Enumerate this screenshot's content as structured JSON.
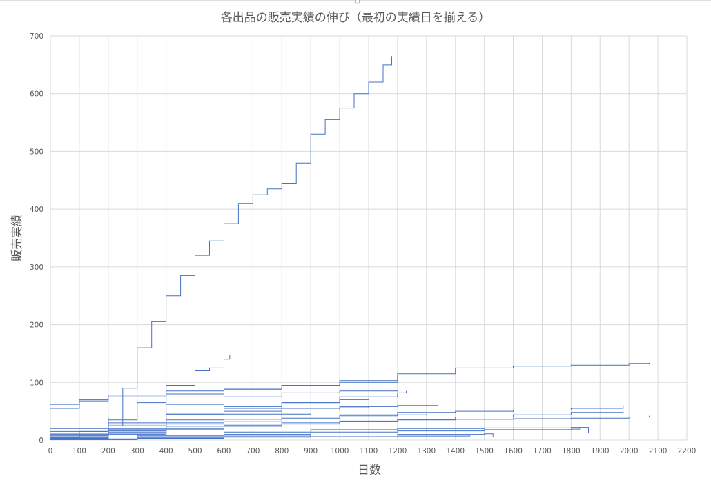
{
  "chart_data": {
    "type": "line",
    "title": "各出品の販売実績の伸び（最初の実績日を揃える）",
    "xlabel": "日数",
    "ylabel": "販売実績",
    "xlim": [
      0,
      2200
    ],
    "ylim": [
      0,
      700
    ],
    "x_ticks": [
      "0",
      "100",
      "200",
      "300",
      "400",
      "500",
      "600",
      "700",
      "800",
      "900",
      "1000",
      "1100",
      "1200",
      "1300",
      "1400",
      "1500",
      "1600",
      "1700",
      "1800",
      "1900",
      "2000",
      "2100",
      "2200"
    ],
    "y_ticks": [
      "0",
      "100",
      "200",
      "300",
      "400",
      "500",
      "600",
      "700"
    ],
    "grid": true,
    "legend": "none",
    "color": "#4472c4",
    "series": [
      {
        "x": [
          0,
          100,
          200,
          250,
          300,
          350,
          400,
          450,
          500,
          550,
          600,
          650,
          700,
          750,
          800,
          850,
          900,
          950,
          1000,
          1050,
          1100,
          1150,
          1180
        ],
        "y": [
          2,
          8,
          25,
          90,
          160,
          205,
          250,
          285,
          320,
          345,
          375,
          410,
          425,
          435,
          445,
          480,
          530,
          555,
          575,
          600,
          620,
          650,
          665
        ]
      },
      {
        "x": [
          0,
          100,
          200,
          300,
          400,
          500,
          550,
          600,
          620
        ],
        "y": [
          5,
          15,
          35,
          65,
          95,
          120,
          125,
          140,
          147
        ]
      },
      {
        "x": [
          0,
          100,
          200,
          400,
          600,
          800,
          1000,
          1200,
          1400,
          1600,
          1800,
          2000,
          2070
        ],
        "y": [
          62,
          70,
          78,
          85,
          90,
          95,
          103,
          115,
          125,
          128,
          130,
          133,
          134
        ]
      },
      {
        "x": [
          0,
          100,
          200,
          400,
          600,
          800,
          1000,
          1200
        ],
        "y": [
          55,
          68,
          75,
          80,
          88,
          95,
          100,
          108
        ]
      },
      {
        "x": [
          0,
          200,
          400,
          600,
          800,
          1000,
          1200
        ],
        "y": [
          20,
          40,
          62,
          75,
          82,
          85,
          86
        ]
      },
      {
        "x": [
          0,
          200,
          400,
          600,
          800,
          1000,
          1200,
          1340
        ],
        "y": [
          15,
          30,
          45,
          50,
          55,
          58,
          60,
          62
        ]
      },
      {
        "x": [
          0,
          200,
          400,
          600,
          800,
          1000,
          1200,
          1400,
          1600,
          1800,
          1980
        ],
        "y": [
          8,
          18,
          28,
          36,
          40,
          44,
          48,
          50,
          52,
          55,
          60
        ]
      },
      {
        "x": [
          0,
          200,
          400,
          600,
          800,
          1000,
          1200,
          1400,
          1600,
          1800,
          2000,
          2070
        ],
        "y": [
          5,
          12,
          20,
          26,
          30,
          33,
          35,
          36,
          37,
          38,
          40,
          42
        ]
      },
      {
        "x": [
          0,
          200,
          400,
          600,
          800,
          1000,
          1200,
          1400,
          1600,
          1800,
          1980
        ],
        "y": [
          3,
          10,
          18,
          24,
          28,
          32,
          36,
          40,
          44,
          48,
          50
        ]
      },
      {
        "x": [
          0,
          300,
          600,
          900,
          1200,
          1500,
          1800,
          1860
        ],
        "y": [
          2,
          8,
          14,
          18,
          20,
          21,
          22,
          12
        ]
      },
      {
        "x": [
          0,
          300,
          600,
          900,
          1200,
          1500,
          1800,
          1830
        ],
        "y": [
          1,
          6,
          10,
          14,
          16,
          18,
          19,
          20
        ]
      },
      {
        "x": [
          0,
          200,
          400,
          600,
          800,
          1000,
          1200,
          1230
        ],
        "y": [
          10,
          25,
          40,
          55,
          65,
          75,
          82,
          85
        ]
      },
      {
        "x": [
          0,
          200,
          400,
          600,
          800,
          1000,
          1100
        ],
        "y": [
          12,
          28,
          45,
          58,
          65,
          70,
          72
        ]
      },
      {
        "x": [
          0,
          200,
          400,
          600,
          800,
          1000,
          1100
        ],
        "y": [
          6,
          20,
          35,
          45,
          52,
          56,
          58
        ]
      },
      {
        "x": [
          0,
          200,
          400,
          600,
          800,
          900
        ],
        "y": [
          4,
          16,
          30,
          40,
          45,
          47
        ]
      },
      {
        "x": [
          0,
          200,
          400,
          600,
          800,
          1000,
          1200,
          1300
        ],
        "y": [
          3,
          14,
          24,
          32,
          38,
          42,
          44,
          45
        ]
      },
      {
        "x": [
          0,
          300,
          600,
          900,
          1200,
          1500,
          1530
        ],
        "y": [
          1,
          4,
          7,
          9,
          10,
          11,
          5
        ]
      },
      {
        "x": [
          0,
          300,
          600,
          900,
          1200,
          1450
        ],
        "y": [
          1,
          3,
          5,
          6,
          7,
          8
        ]
      }
    ]
  }
}
